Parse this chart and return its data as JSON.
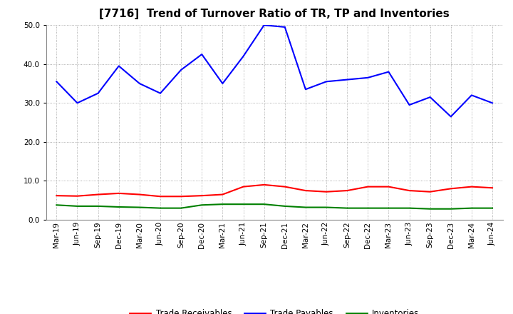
{
  "title": "[7716]  Trend of Turnover Ratio of TR, TP and Inventories",
  "x_labels": [
    "Mar-19",
    "Jun-19",
    "Sep-19",
    "Dec-19",
    "Mar-20",
    "Jun-20",
    "Sep-20",
    "Dec-20",
    "Mar-21",
    "Jun-21",
    "Sep-21",
    "Dec-21",
    "Mar-22",
    "Jun-22",
    "Sep-22",
    "Dec-22",
    "Mar-23",
    "Jun-23",
    "Sep-23",
    "Dec-23",
    "Mar-24",
    "Jun-24"
  ],
  "trade_payables": [
    35.5,
    30.0,
    32.5,
    39.5,
    35.0,
    32.5,
    38.5,
    42.5,
    35.0,
    42.0,
    50.0,
    49.5,
    33.5,
    35.5,
    36.0,
    36.5,
    38.0,
    29.5,
    31.5,
    26.5,
    32.0,
    30.0
  ],
  "trade_receivables": [
    6.2,
    6.1,
    6.5,
    6.8,
    6.5,
    6.0,
    6.0,
    6.2,
    6.5,
    8.5,
    9.0,
    8.5,
    7.5,
    7.2,
    7.5,
    8.5,
    8.5,
    7.5,
    7.2,
    8.0,
    8.5,
    8.2
  ],
  "inventories": [
    3.8,
    3.5,
    3.5,
    3.3,
    3.2,
    3.0,
    3.0,
    3.8,
    4.0,
    4.0,
    4.0,
    3.5,
    3.2,
    3.2,
    3.0,
    3.0,
    3.0,
    3.0,
    2.8,
    2.8,
    3.0,
    3.0
  ],
  "color_payables": "#0000FF",
  "color_receivables": "#FF0000",
  "color_inventories": "#008000",
  "ylim": [
    0.0,
    50.0
  ],
  "yticks": [
    0.0,
    10.0,
    20.0,
    30.0,
    40.0,
    50.0
  ],
  "background_color": "#FFFFFF",
  "plot_bg_color": "#FFFFFF",
  "grid_color": "#999999",
  "title_fontsize": 11,
  "tick_fontsize": 7.5,
  "legend_labels": [
    "Trade Receivables",
    "Trade Payables",
    "Inventories"
  ]
}
